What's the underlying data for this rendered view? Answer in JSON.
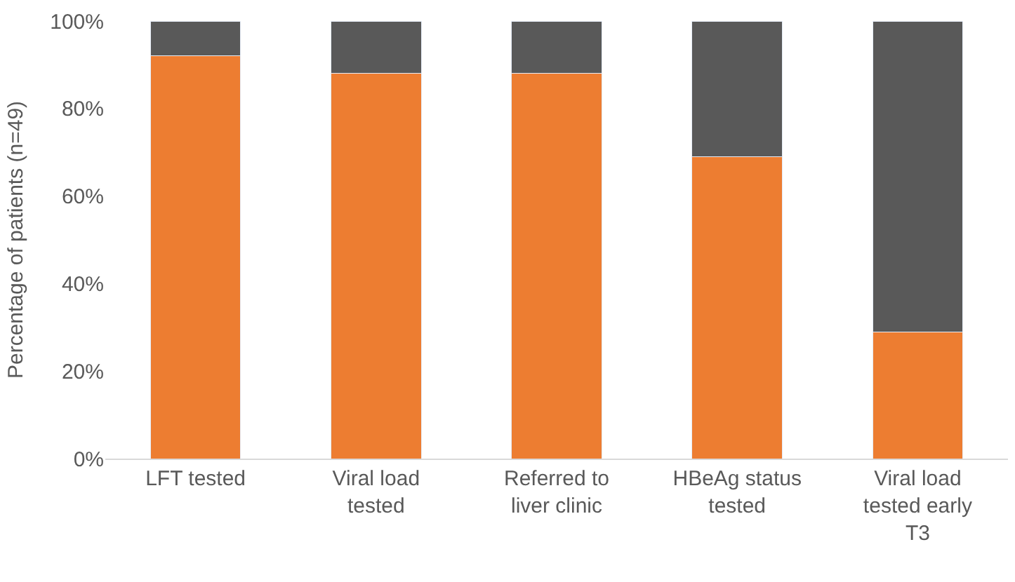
{
  "chart_data": {
    "type": "bar",
    "stacked": true,
    "ylabel": "Percentage of patients (n=49)",
    "categories": [
      "LFT tested",
      "Viral load tested",
      "Referred to liver clinic",
      "HBeAg status tested",
      "Viral load tested early T3"
    ],
    "series": [
      {
        "color": "#ed7d31",
        "values": [
          92,
          88,
          88,
          69,
          29
        ]
      },
      {
        "color": "#595959",
        "values": [
          8,
          12,
          12,
          31,
          71
        ]
      }
    ],
    "ylim": [
      0,
      100
    ],
    "yticks": [
      {
        "value": 0,
        "label": "0%"
      },
      {
        "value": 20,
        "label": "20%"
      },
      {
        "value": 40,
        "label": "40%"
      },
      {
        "value": 60,
        "label": "60%"
      },
      {
        "value": 80,
        "label": "80%"
      },
      {
        "value": 100,
        "label": "100%"
      }
    ],
    "tick_labels": "xy"
  }
}
